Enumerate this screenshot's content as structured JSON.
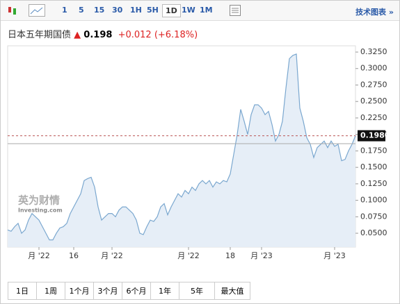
{
  "toolbar": {
    "intervals": [
      "1",
      "5",
      "15",
      "30",
      "1H",
      "5H",
      "1D",
      "1W",
      "1M"
    ],
    "selected": 6,
    "tech_chart": "技术图表 »"
  },
  "header": {
    "name": "日本五年期国债",
    "price": "0.198",
    "change": "+0.012",
    "change_pct": "(+6.18%)"
  },
  "watermark": {
    "brand": "英为财情",
    "site": "Investing.com"
  },
  "chart_data": {
    "type": "area",
    "color": "#7aa7cf",
    "fill": "#e6eef7",
    "x": [
      0,
      1,
      2,
      3,
      4,
      5,
      6,
      7,
      8,
      9,
      10,
      11,
      12,
      13,
      14,
      15,
      16,
      17,
      18,
      19,
      20,
      21,
      22,
      23,
      24,
      25,
      26,
      27,
      28,
      29,
      30,
      31,
      32,
      33,
      34,
      35,
      36,
      37,
      38,
      39,
      40,
      41,
      42,
      43,
      44,
      45,
      46,
      47,
      48,
      49,
      50,
      51,
      52,
      53,
      54,
      55,
      56,
      57,
      58,
      59,
      60,
      61,
      62,
      63,
      64,
      65,
      66,
      67,
      68,
      69,
      70,
      71,
      72,
      73,
      74,
      75,
      76,
      77,
      78,
      79,
      80,
      81,
      82,
      83,
      84,
      85,
      86,
      87,
      88,
      89,
      90,
      91,
      92,
      93,
      94,
      95,
      96,
      97,
      98,
      99,
      100
    ],
    "values": [
      0.055,
      0.053,
      0.06,
      0.065,
      0.05,
      0.055,
      0.07,
      0.08,
      0.075,
      0.07,
      0.06,
      0.05,
      0.04,
      0.04,
      0.05,
      0.058,
      0.06,
      0.065,
      0.08,
      0.09,
      0.1,
      0.11,
      0.13,
      0.133,
      0.135,
      0.12,
      0.09,
      0.07,
      0.075,
      0.08,
      0.08,
      0.075,
      0.085,
      0.09,
      0.09,
      0.085,
      0.08,
      0.07,
      0.05,
      0.048,
      0.06,
      0.07,
      0.068,
      0.075,
      0.09,
      0.095,
      0.078,
      0.09,
      0.1,
      0.11,
      0.105,
      0.115,
      0.11,
      0.12,
      0.115,
      0.125,
      0.13,
      0.125,
      0.13,
      0.12,
      0.128,
      0.125,
      0.13,
      0.128,
      0.14,
      0.17,
      0.2,
      0.238,
      0.22,
      0.2,
      0.23,
      0.245,
      0.245,
      0.24,
      0.23,
      0.235,
      0.215,
      0.19,
      0.2,
      0.22,
      0.27,
      0.315,
      0.32,
      0.322,
      0.24,
      0.22,
      0.195,
      0.185,
      0.165,
      0.18,
      0.185,
      0.19,
      0.18,
      0.19,
      0.182,
      0.185,
      0.16,
      0.162,
      0.175,
      0.185,
      0.198
    ],
    "xlim": [
      0,
      100
    ],
    "ylim": [
      0.029,
      0.3345
    ],
    "xticks": [
      {
        "value": 9,
        "label": "月 '22"
      },
      {
        "value": 19,
        "label": "16"
      },
      {
        "value": 30,
        "label": "月 '22"
      },
      {
        "value": 52,
        "label": "月 '22"
      },
      {
        "value": 64,
        "label": "18"
      },
      {
        "value": 73,
        "label": "月 '23"
      },
      {
        "value": 94,
        "label": "月 '23"
      }
    ],
    "yticks": [
      {
        "value": 0.05,
        "label": "0.0500"
      },
      {
        "value": 0.075,
        "label": "0.0750"
      },
      {
        "value": 0.1,
        "label": "0.1000"
      },
      {
        "value": 0.125,
        "label": "0.1250"
      },
      {
        "value": 0.15,
        "label": "0.1500"
      },
      {
        "value": 0.175,
        "label": "0.1750"
      },
      {
        "value": 0.2,
        "label": "0.2000"
      },
      {
        "value": 0.225,
        "label": "0.2250"
      },
      {
        "value": 0.25,
        "label": "0.2500"
      },
      {
        "value": 0.275,
        "label": "0.2750"
      },
      {
        "value": 0.3,
        "label": "0.3000"
      },
      {
        "value": 0.325,
        "label": "0.3250"
      }
    ],
    "price_line": {
      "value": 0.198,
      "label": "0.1980"
    },
    "prev_close": 0.186
  },
  "ranges": [
    "1日",
    "1周",
    "1个月",
    "3个月",
    "6个月",
    "1年",
    "5年",
    "最大值"
  ]
}
